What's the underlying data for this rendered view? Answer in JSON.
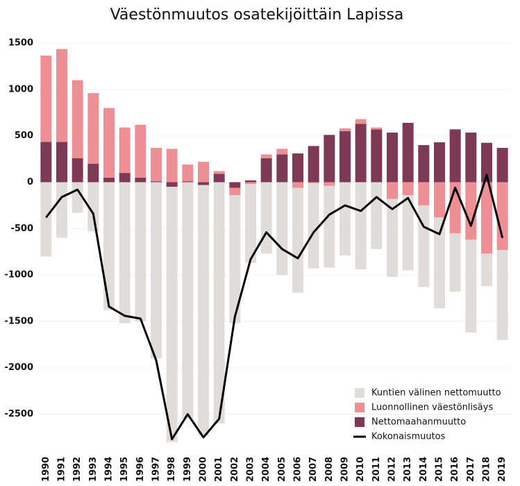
{
  "chart_data": {
    "type": "bar",
    "title": "Väestönmuutos osatekijöittäin Lapissa",
    "categories": [
      "1990",
      "1991",
      "1992",
      "1993",
      "1994",
      "1995",
      "1996",
      "1997",
      "1998",
      "1999",
      "2000",
      "2001",
      "2002",
      "2003",
      "2004",
      "2005",
      "2006",
      "2007",
      "2008",
      "2009",
      "2010",
      "2011",
      "2012",
      "2013",
      "2014",
      "2015",
      "2016",
      "2017",
      "2018",
      "2019"
    ],
    "series": [
      {
        "name": "Kuntien välinen nettomuutto",
        "color": "#e0dcda",
        "type": "bar",
        "values": [
          -800,
          -600,
          -330,
          -530,
          -1380,
          -1520,
          -1500,
          -1900,
          -2750,
          -2550,
          -2700,
          -2600,
          -1380,
          -850,
          -770,
          -1000,
          -1130,
          -920,
          -880,
          -790,
          -940,
          -720,
          -840,
          -810,
          -880,
          -980,
          -630,
          -1000,
          -350,
          -970
        ]
      },
      {
        "name": "Luonnollinen väestönlisäys",
        "color": "#ee8f96",
        "type": "bar",
        "values": [
          930,
          1000,
          840,
          760,
          750,
          490,
          570,
          360,
          360,
          180,
          220,
          30,
          -80,
          -20,
          40,
          60,
          -60,
          -10,
          -40,
          30,
          50,
          20,
          -180,
          -140,
          -250,
          -380,
          -550,
          -620,
          -770,
          -730
        ]
      },
      {
        "name": "Nettomaahanmuutto",
        "color": "#7e3a55",
        "type": "bar",
        "values": [
          435,
          435,
          260,
          200,
          50,
          100,
          50,
          10,
          -50,
          10,
          -30,
          90,
          -60,
          20,
          260,
          300,
          310,
          390,
          510,
          550,
          630,
          570,
          535,
          640,
          400,
          430,
          570,
          535,
          425,
          370
        ]
      },
      {
        "name": "Kokonaismuutos",
        "color": "#000000",
        "type": "line",
        "values": [
          -380,
          -160,
          -80,
          -340,
          -1340,
          -1440,
          -1470,
          -1920,
          -2770,
          -2500,
          -2750,
          -2550,
          -1450,
          -830,
          -540,
          -720,
          -820,
          -540,
          -350,
          -250,
          -310,
          -160,
          -290,
          -170,
          -480,
          -560,
          -60,
          -470,
          80,
          -600
        ]
      }
    ],
    "ylim": [
      -2900,
      1500
    ],
    "yticks": [
      -2500,
      -2000,
      -1500,
      -1000,
      -500,
      0,
      500,
      1000,
      1500
    ],
    "grid": true
  }
}
